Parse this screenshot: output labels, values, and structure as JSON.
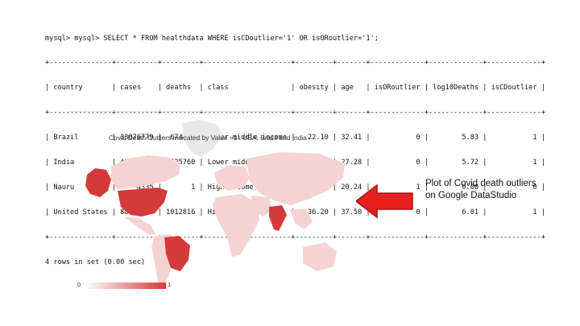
{
  "terminal": {
    "lines": [
      "mysql> mysql> SELECT * FROM healthdata WHERE isCDoutlier='1' OR isORoutlier='1';",
      "+---------------+----------+---------+---------------------+---------+-------+-------------+-------------+-------------+",
      "| country       | cases    | deaths  | class               | obesity | age   | isORoutlier | log10Deaths | isCDoutlier |",
      "+---------------+----------+---------+---------------------+---------+-------+-------------+-------------+-------------+",
      "| Brazil        | 33076779 |  674482 | Upper middle income |   22.10 | 32.41 |           0 |        5.83 |           1 |",
      "| India         | 43767534 |  525760 | Lower middle income |    3.90 | 27.28 |           0 |        5.72 |           1 |",
      "| Nauru         |     4335 |       1 | High income         |   61.00 | 20.24 |           1 |        0.00 |           0 |",
      "| United States | 88027926 | 1012816 | High income         |   36.20 | 37.50 |           0 |        6.01 |           1 |",
      "+---------------+----------+---------+---------------------+---------+-------+-------------+-------------+-------------+",
      "4 rows in set (0.00 sec)"
    ]
  },
  "map": {
    "title": "Covid Death Outliers indicated by Value =1  : USA, Brazil and India",
    "legend_min": "0",
    "legend_max": "1"
  },
  "annotation": {
    "text": "Plot of Covid death outliers on Google DataStudio"
  },
  "colors": {
    "outlier": "#d43a3a",
    "land": "#f6d3d3",
    "greenland": "#e8e8e8",
    "arrow": "#e8201d"
  }
}
